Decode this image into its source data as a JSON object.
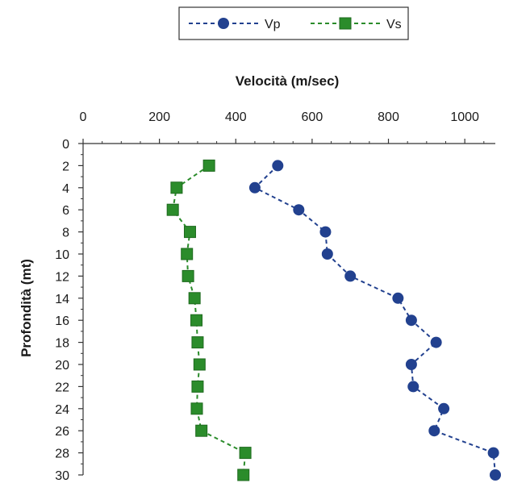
{
  "chart_data": {
    "type": "scatter",
    "title": "",
    "xlabel": "Velocità (m/sec)",
    "ylabel": "Profondità (mt)",
    "xlim": [
      0,
      1080
    ],
    "ylim": [
      0,
      30
    ],
    "x_axis_position": "top",
    "y_axis_inverted": true,
    "x_ticks": [
      0,
      200,
      400,
      600,
      800,
      1000
    ],
    "y_ticks": [
      0,
      2,
      4,
      6,
      8,
      10,
      12,
      14,
      16,
      18,
      20,
      22,
      24,
      26,
      28,
      30
    ],
    "grid": false,
    "legend_position": "top-center",
    "series": [
      {
        "name": "Vp",
        "color": "#22418f",
        "marker": "circle",
        "line_style": "dashed",
        "x": [
          510,
          450,
          565,
          635,
          640,
          700,
          825,
          860,
          925,
          860,
          865,
          945,
          920,
          1075,
          1080
        ],
        "y": [
          2,
          4,
          6,
          8,
          10,
          12,
          14,
          16,
          18,
          20,
          22,
          24,
          26,
          28,
          30
        ]
      },
      {
        "name": "Vs",
        "color": "#2b8c2b",
        "marker": "square",
        "line_style": "dashed",
        "x": [
          330,
          245,
          235,
          280,
          272,
          275,
          292,
          297,
          300,
          305,
          300,
          298,
          310,
          425,
          420
        ],
        "y": [
          2,
          4,
          6,
          8,
          10,
          12,
          14,
          16,
          18,
          20,
          22,
          24,
          26,
          28,
          30
        ]
      }
    ]
  }
}
